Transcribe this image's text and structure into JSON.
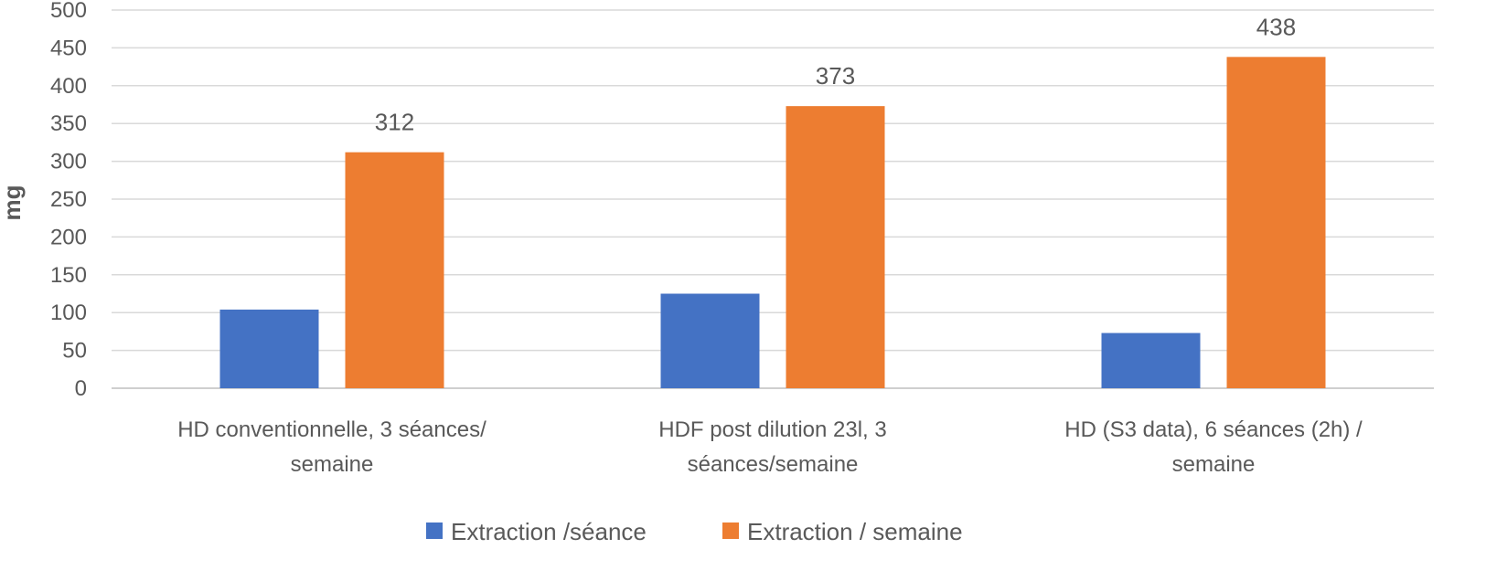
{
  "chart_data": {
    "type": "bar",
    "title": "",
    "xlabel": "",
    "ylabel": "mg",
    "ylim": [
      0,
      500
    ],
    "yticks": [
      0,
      50,
      100,
      150,
      200,
      250,
      300,
      350,
      400,
      450,
      500
    ],
    "grid": true,
    "legend_position": "bottom",
    "categories": [
      [
        "HD conventionnelle,  3 séances/",
        "semaine"
      ],
      [
        "HDF post dilution 23l, 3",
        "séances/semaine"
      ],
      [
        "HD (S3 data), 6 séances (2h) /",
        "semaine"
      ]
    ],
    "series": [
      {
        "name": "Extraction /séance",
        "color": "#4472c4",
        "values": [
          104,
          125,
          73
        ],
        "data_labels": [
          null,
          null,
          null
        ]
      },
      {
        "name": "Extraction / semaine",
        "color": "#ed7d31",
        "values": [
          312,
          373,
          438
        ],
        "data_labels": [
          "312",
          "373",
          "438"
        ]
      }
    ]
  }
}
